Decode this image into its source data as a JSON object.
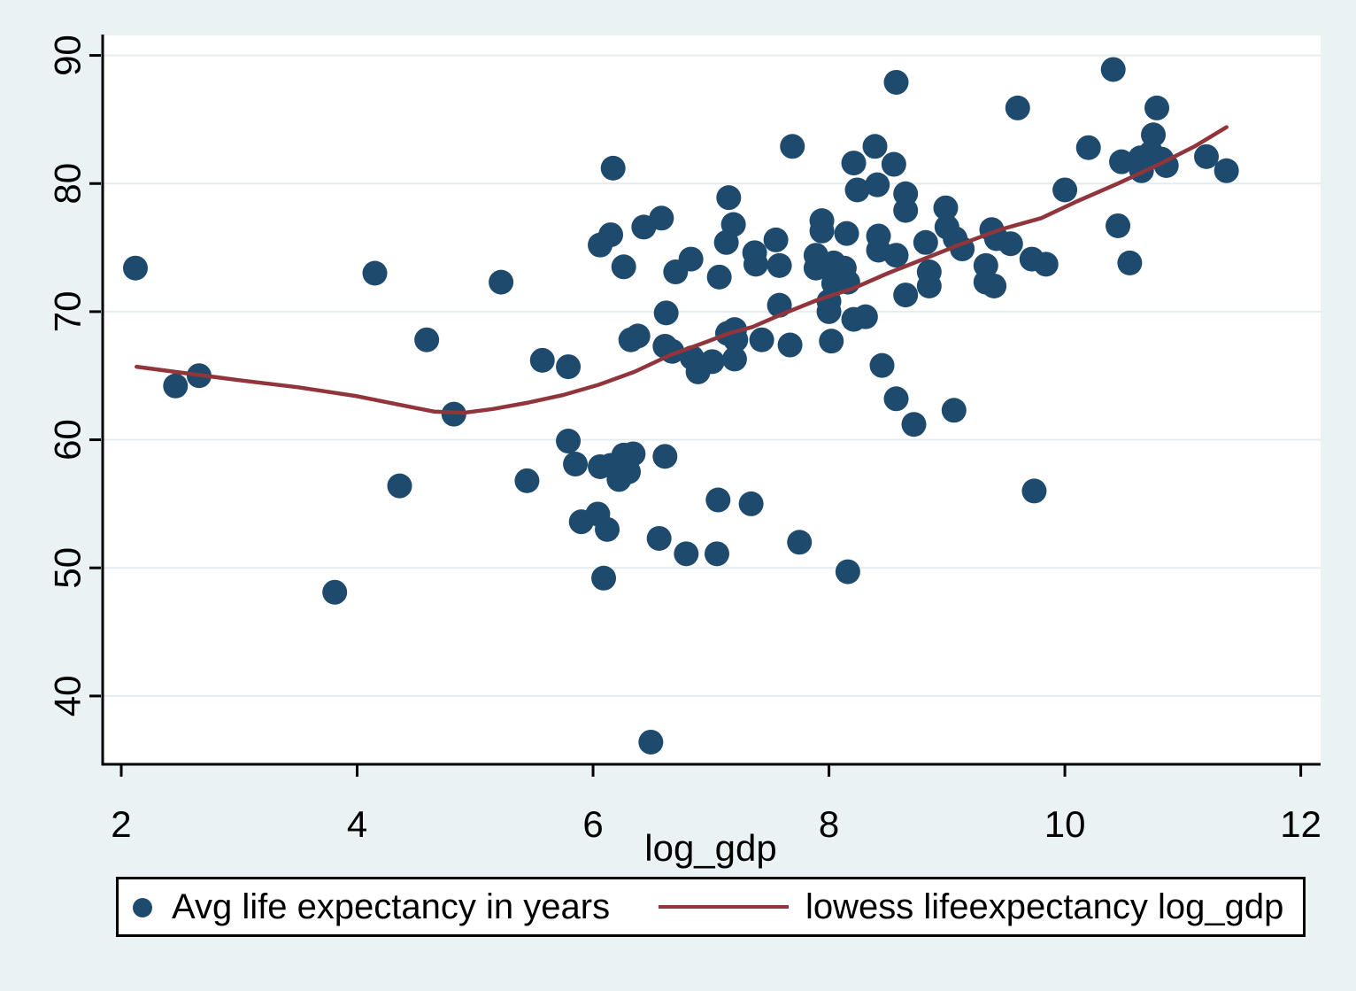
{
  "chart_data": {
    "type": "scatter",
    "title": "",
    "xlabel": "log_gdp",
    "ylabel": "",
    "x_ticks": [
      2,
      4,
      6,
      8,
      10,
      12
    ],
    "y_ticks": [
      40,
      50,
      60,
      70,
      80,
      90
    ],
    "xlim": [
      1.835,
      12.168
    ],
    "ylim": [
      34.67,
      91.56
    ],
    "grid": "horizontal-only",
    "legend_position": "bottom",
    "plot_bg": "#ffffff",
    "page_bg": "#eaf2f3",
    "gridline_color": "#e3ecef",
    "axis_color": "#000000",
    "series": [
      {
        "name": "Avg life expectancy in years",
        "type": "scatter",
        "marker": "circle",
        "color": "#1e4a6d",
        "points": [
          [
            2.12,
            73.4
          ],
          [
            2.46,
            64.2
          ],
          [
            2.66,
            65.0
          ],
          [
            3.81,
            48.1
          ],
          [
            4.15,
            73.0
          ],
          [
            4.36,
            56.4
          ],
          [
            4.59,
            67.8
          ],
          [
            4.82,
            62.0
          ],
          [
            5.22,
            72.3
          ],
          [
            5.44,
            56.8
          ],
          [
            5.57,
            66.2
          ],
          [
            5.79,
            65.7
          ],
          [
            5.79,
            59.9
          ],
          [
            5.85,
            58.1
          ],
          [
            5.9,
            53.6
          ],
          [
            6.04,
            54.2
          ],
          [
            6.06,
            57.9
          ],
          [
            6.06,
            75.2
          ],
          [
            6.09,
            49.2
          ],
          [
            6.12,
            53.0
          ],
          [
            6.15,
            58.0
          ],
          [
            6.15,
            76.0
          ],
          [
            6.17,
            81.2
          ],
          [
            6.22,
            56.9
          ],
          [
            6.26,
            58.8
          ],
          [
            6.26,
            73.5
          ],
          [
            6.3,
            57.5
          ],
          [
            6.32,
            67.8
          ],
          [
            6.34,
            58.9
          ],
          [
            6.38,
            68.1
          ],
          [
            6.43,
            76.6
          ],
          [
            6.49,
            36.4
          ],
          [
            6.56,
            52.3
          ],
          [
            6.58,
            77.3
          ],
          [
            6.61,
            58.7
          ],
          [
            6.61,
            67.3
          ],
          [
            6.62,
            69.9
          ],
          [
            6.67,
            66.9
          ],
          [
            6.7,
            73.1
          ],
          [
            6.79,
            51.1
          ],
          [
            6.83,
            74.1
          ],
          [
            6.84,
            66.4
          ],
          [
            6.89,
            65.3
          ],
          [
            7.01,
            66.1
          ],
          [
            7.05,
            51.1
          ],
          [
            7.06,
            55.3
          ],
          [
            7.07,
            72.7
          ],
          [
            7.13,
            75.4
          ],
          [
            7.14,
            68.3
          ],
          [
            7.15,
            78.9
          ],
          [
            7.19,
            76.8
          ],
          [
            7.2,
            66.3
          ],
          [
            7.2,
            68.6
          ],
          [
            7.21,
            67.8
          ],
          [
            7.34,
            55.0
          ],
          [
            7.37,
            74.6
          ],
          [
            7.38,
            73.7
          ],
          [
            7.43,
            67.8
          ],
          [
            7.55,
            75.6
          ],
          [
            7.58,
            73.6
          ],
          [
            7.58,
            70.5
          ],
          [
            7.67,
            67.4
          ],
          [
            7.69,
            82.9
          ],
          [
            7.75,
            52.0
          ],
          [
            7.89,
            74.4
          ],
          [
            7.89,
            73.4
          ],
          [
            7.94,
            77.1
          ],
          [
            7.94,
            76.3
          ],
          [
            8.0,
            70.8
          ],
          [
            8.0,
            70.0
          ],
          [
            8.02,
            67.7
          ],
          [
            8.04,
            73.8
          ],
          [
            8.04,
            72.2
          ],
          [
            8.08,
            73.1
          ],
          [
            8.13,
            73.4
          ],
          [
            8.15,
            76.1
          ],
          [
            8.16,
            72.3
          ],
          [
            8.16,
            49.7
          ],
          [
            8.21,
            81.6
          ],
          [
            8.21,
            69.4
          ],
          [
            8.24,
            79.5
          ],
          [
            8.31,
            69.6
          ],
          [
            8.39,
            82.9
          ],
          [
            8.41,
            79.9
          ],
          [
            8.42,
            75.9
          ],
          [
            8.42,
            74.8
          ],
          [
            8.45,
            65.8
          ],
          [
            8.55,
            81.5
          ],
          [
            8.57,
            87.9
          ],
          [
            8.57,
            74.4
          ],
          [
            8.57,
            63.2
          ],
          [
            8.65,
            79.2
          ],
          [
            8.65,
            77.9
          ],
          [
            8.65,
            71.3
          ],
          [
            8.72,
            61.2
          ],
          [
            8.82,
            75.4
          ],
          [
            8.85,
            73.1
          ],
          [
            8.85,
            72.0
          ],
          [
            8.99,
            78.1
          ],
          [
            9.0,
            76.6
          ],
          [
            9.06,
            62.3
          ],
          [
            9.07,
            75.7
          ],
          [
            9.13,
            74.9
          ],
          [
            9.33,
            73.6
          ],
          [
            9.33,
            72.3
          ],
          [
            9.38,
            76.4
          ],
          [
            9.4,
            72.0
          ],
          [
            9.42,
            75.7
          ],
          [
            9.54,
            75.3
          ],
          [
            9.6,
            85.9
          ],
          [
            9.72,
            74.1
          ],
          [
            9.74,
            56.0
          ],
          [
            9.84,
            73.7
          ],
          [
            10.0,
            79.5
          ],
          [
            10.2,
            82.8
          ],
          [
            10.41,
            88.9
          ],
          [
            10.45,
            76.7
          ],
          [
            10.48,
            81.7
          ],
          [
            10.55,
            73.8
          ],
          [
            10.64,
            82.0
          ],
          [
            10.65,
            81.0
          ],
          [
            10.73,
            82.4
          ],
          [
            10.75,
            83.8
          ],
          [
            10.78,
            85.9
          ],
          [
            10.82,
            81.9
          ],
          [
            10.86,
            81.4
          ],
          [
            11.2,
            82.1
          ],
          [
            11.37,
            81.0
          ]
        ]
      },
      {
        "name": "lowess lifeexpectancy log_gdp",
        "type": "line",
        "color": "#90353b",
        "points": [
          [
            2.13,
            65.7
          ],
          [
            2.5,
            65.25
          ],
          [
            3.0,
            64.65
          ],
          [
            3.5,
            64.1
          ],
          [
            4.0,
            63.4
          ],
          [
            4.35,
            62.75
          ],
          [
            4.65,
            62.2
          ],
          [
            4.9,
            62.1
          ],
          [
            5.15,
            62.4
          ],
          [
            5.45,
            62.9
          ],
          [
            5.75,
            63.5
          ],
          [
            6.05,
            64.3
          ],
          [
            6.35,
            65.3
          ],
          [
            6.65,
            66.6
          ],
          [
            6.95,
            67.6
          ],
          [
            7.15,
            68.3
          ],
          [
            7.35,
            68.8
          ],
          [
            7.6,
            69.8
          ],
          [
            7.9,
            70.9
          ],
          [
            8.2,
            71.8
          ],
          [
            8.5,
            73.0
          ],
          [
            8.8,
            74.1
          ],
          [
            9.1,
            75.2
          ],
          [
            9.45,
            76.4
          ],
          [
            9.8,
            77.3
          ],
          [
            10.1,
            78.6
          ],
          [
            10.45,
            80.0
          ],
          [
            10.8,
            81.5
          ],
          [
            11.1,
            82.9
          ],
          [
            11.37,
            84.4
          ]
        ]
      }
    ]
  },
  "legend": {
    "series1_label": "Avg life expectancy in years",
    "series2_label": "lowess lifeexpectancy log_gdp"
  },
  "colors": {
    "marker": "#1e4a6d",
    "lowess": "#90353b",
    "background": "#eaf2f3",
    "plot_background": "#ffffff",
    "gridline": "#e3ecef",
    "axis": "#000000"
  }
}
